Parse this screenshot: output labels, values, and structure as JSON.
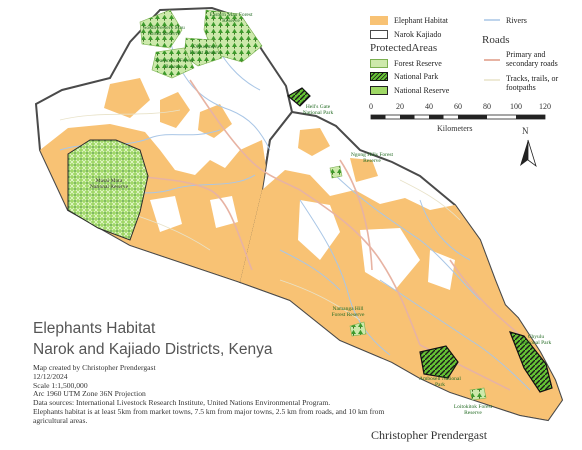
{
  "legend": {
    "elephant_habitat": "Elephant Habitat",
    "narok_kajiado": "Narok Kajiado",
    "protected_header": "ProtectedAreas",
    "forest_reserve": "Forest Reserve",
    "national_park": "National Park",
    "national_reserve": "National Reserve",
    "rivers": "Rivers",
    "roads_header": "Roads",
    "primary_roads": "Primary and secondary roads",
    "tracks": "Tracks, trails, or footpaths"
  },
  "scale": {
    "ticks": [
      "0",
      "20",
      "40",
      "60",
      "80",
      "100",
      "120"
    ],
    "unit": "Kilometers"
  },
  "north": "N",
  "map_labels": {
    "southwestern_mau": "Southwestern Mau Forest Reserve",
    "eastern_mau": "Eastern Mau Forest Reserve",
    "ol_pusimoru": "Olpusimoru Forest Reserve",
    "transmara": "Transmara Forest Reserve",
    "hells_gate": "Hell's Gate National Park",
    "masai_mara": "Masai Mara National Reserve",
    "ngong_hills": "Ngong Hills Forest Reserve",
    "namanga_hill": "Namanga Hill Forest Reserve",
    "amboseli": "Amboseli National Park",
    "chyulu": "Chyulu National Park",
    "loitokitok": "Loitokitok Forest Reserve"
  },
  "title": {
    "line1": "Elephants Habitat",
    "line2": "Narok and Kajiado Districts, Kenya"
  },
  "info": {
    "created_by": "Map created by Christopher Prendergast",
    "date": "12/12/2024",
    "scale": "Scale 1:1,500,000",
    "projection": "Arc 1960 UTM Zone 36N Projection",
    "sources": "Data sources: International Livestock Research Institute, United Nations Environmental Program.",
    "criteria": "Elephants habitat is at least 5km from market towns, 7.5 km from major towns, 2.5 km from roads, and 10 km from agricultural areas."
  },
  "author": "Christopher Prendergast",
  "colors": {
    "habitat": "#f8c274",
    "land": "#ffffff",
    "border": "#4a4a4a",
    "river": "#a9c6e6",
    "road_primary": "#e7b3a3",
    "forest": "#c6e6a2",
    "park_green": "#7bd13f"
  }
}
